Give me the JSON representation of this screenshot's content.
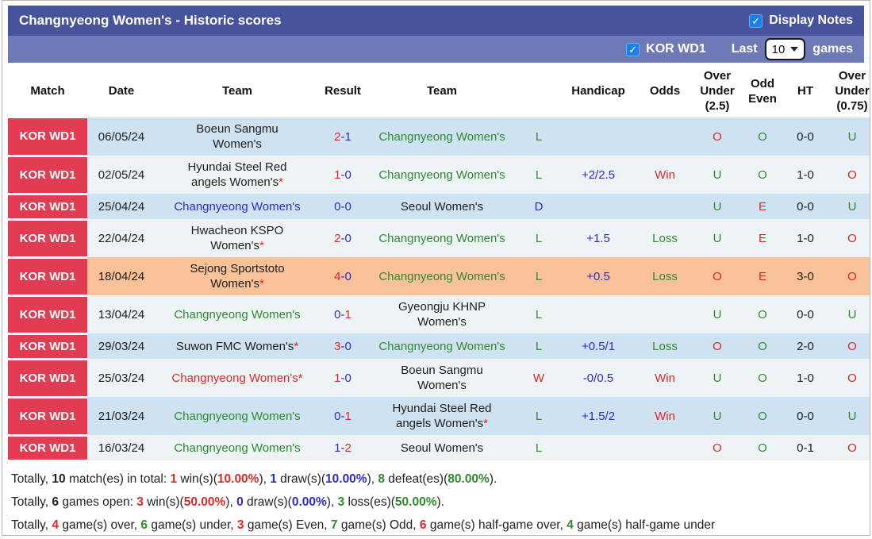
{
  "header": {
    "title": "Changnyeong Women's - Historic scores",
    "display_notes_label": "Display Notes",
    "league_checkbox_label": "KOR WD1",
    "last_label": "Last",
    "selected_games": "10",
    "games_label": "games"
  },
  "icons": {
    "check": "✓"
  },
  "palette": {
    "red": "#e02626",
    "green": "#2e8b2e",
    "blue": "#2b2bd0",
    "badge_bg": "#e23c52",
    "row_blue": "#cfe2f1",
    "row_pale": "#eef4f6",
    "row_orange": "#f9c197",
    "band1_bg": "#47539a",
    "band2_bg": "#6e79b8",
    "checkbox_blue": "#1d7fe8"
  },
  "table": {
    "columns": [
      "Match",
      "Date",
      "Team",
      "Result",
      "Team",
      "",
      "Handicap",
      "Odds",
      "Over\nUnder\n(2.5)",
      "Odd\nEven",
      "HT",
      "Over\nUnder\n(0.75)"
    ],
    "rows": [
      {
        "badge": "KOR WD1",
        "date": "06/05/24",
        "home": {
          "name": "Boeun Sangmu Women's",
          "color": "black",
          "star": false
        },
        "result": {
          "home": "2",
          "away": "1",
          "home_color": "red",
          "away_color": "blue"
        },
        "away": {
          "name": "Changnyeong Women's",
          "color": "green",
          "star": false
        },
        "outcome": {
          "text": "L",
          "color": "green"
        },
        "handicap": "",
        "odds": {
          "text": "",
          "color": "red"
        },
        "over_under_25": {
          "text": "O",
          "color": "red"
        },
        "odd_even": {
          "text": "O",
          "color": "green"
        },
        "ht": "0-0",
        "over_under_075": {
          "text": "U",
          "color": "green"
        },
        "bg": "blue"
      },
      {
        "badge": "KOR WD1",
        "date": "02/05/24",
        "home": {
          "name": "Hyundai Steel Red angels Women's",
          "color": "black",
          "star": true
        },
        "result": {
          "home": "1",
          "away": "0",
          "home_color": "red",
          "away_color": "blue"
        },
        "away": {
          "name": "Changnyeong Women's",
          "color": "green",
          "star": false
        },
        "outcome": {
          "text": "L",
          "color": "green"
        },
        "handicap": "+2/2.5",
        "odds": {
          "text": "Win",
          "color": "red"
        },
        "over_under_25": {
          "text": "U",
          "color": "green"
        },
        "odd_even": {
          "text": "O",
          "color": "green"
        },
        "ht": "1-0",
        "over_under_075": {
          "text": "O",
          "color": "red"
        },
        "bg": "pale"
      },
      {
        "badge": "KOR WD1",
        "date": "25/04/24",
        "home": {
          "name": "Changnyeong Women's",
          "color": "blue",
          "star": false
        },
        "result": {
          "home": "0",
          "away": "0",
          "home_color": "blue",
          "away_color": "blue"
        },
        "away": {
          "name": "Seoul Women's",
          "color": "black",
          "star": false
        },
        "outcome": {
          "text": "D",
          "color": "blue"
        },
        "handicap": "",
        "odds": {
          "text": "",
          "color": "red"
        },
        "over_under_25": {
          "text": "U",
          "color": "green"
        },
        "odd_even": {
          "text": "E",
          "color": "red"
        },
        "ht": "0-0",
        "over_under_075": {
          "text": "U",
          "color": "green"
        },
        "bg": "blue"
      },
      {
        "badge": "KOR WD1",
        "date": "22/04/24",
        "home": {
          "name": "Hwacheon KSPO Women's",
          "color": "black",
          "star": true
        },
        "result": {
          "home": "2",
          "away": "0",
          "home_color": "red",
          "away_color": "blue"
        },
        "away": {
          "name": "Changnyeong Women's",
          "color": "green",
          "star": false
        },
        "outcome": {
          "text": "L",
          "color": "green"
        },
        "handicap": "+1.5",
        "odds": {
          "text": "Loss",
          "color": "green"
        },
        "over_under_25": {
          "text": "U",
          "color": "green"
        },
        "odd_even": {
          "text": "E",
          "color": "red"
        },
        "ht": "1-0",
        "over_under_075": {
          "text": "O",
          "color": "red"
        },
        "bg": "pale"
      },
      {
        "badge": "KOR WD1",
        "date": "18/04/24",
        "home": {
          "name": "Sejong Sportstoto Women's",
          "color": "black",
          "star": true
        },
        "result": {
          "home": "4",
          "away": "0",
          "home_color": "red",
          "away_color": "blue"
        },
        "away": {
          "name": "Changnyeong Women's",
          "color": "green",
          "star": false
        },
        "outcome": {
          "text": "L",
          "color": "green"
        },
        "handicap": "+0.5",
        "odds": {
          "text": "Loss",
          "color": "green"
        },
        "over_under_25": {
          "text": "O",
          "color": "red"
        },
        "odd_even": {
          "text": "E",
          "color": "red"
        },
        "ht": "3-0",
        "over_under_075": {
          "text": "O",
          "color": "red"
        },
        "bg": "orange"
      },
      {
        "badge": "KOR WD1",
        "date": "13/04/24",
        "home": {
          "name": "Changnyeong Women's",
          "color": "green",
          "star": false
        },
        "result": {
          "home": "0",
          "away": "1",
          "home_color": "blue",
          "away_color": "red"
        },
        "away": {
          "name": "Gyeongju KHNP Women's",
          "color": "black",
          "star": false
        },
        "outcome": {
          "text": "L",
          "color": "green"
        },
        "handicap": "",
        "odds": {
          "text": "",
          "color": "red"
        },
        "over_under_25": {
          "text": "U",
          "color": "green"
        },
        "odd_even": {
          "text": "O",
          "color": "green"
        },
        "ht": "0-0",
        "over_under_075": {
          "text": "U",
          "color": "green"
        },
        "bg": "pale"
      },
      {
        "badge": "KOR WD1",
        "date": "29/03/24",
        "home": {
          "name": "Suwon FMC Women's",
          "color": "black",
          "star": true
        },
        "result": {
          "home": "3",
          "away": "0",
          "home_color": "red",
          "away_color": "blue"
        },
        "away": {
          "name": "Changnyeong Women's",
          "color": "green",
          "star": false
        },
        "outcome": {
          "text": "L",
          "color": "green"
        },
        "handicap": "+0.5/1",
        "odds": {
          "text": "Loss",
          "color": "green"
        },
        "over_under_25": {
          "text": "O",
          "color": "red"
        },
        "odd_even": {
          "text": "O",
          "color": "green"
        },
        "ht": "2-0",
        "over_under_075": {
          "text": "O",
          "color": "red"
        },
        "bg": "blue"
      },
      {
        "badge": "KOR WD1",
        "date": "25/03/24",
        "home": {
          "name": "Changnyeong Women's",
          "color": "red",
          "star": true
        },
        "result": {
          "home": "1",
          "away": "0",
          "home_color": "red",
          "away_color": "blue"
        },
        "away": {
          "name": "Boeun Sangmu Women's",
          "color": "black",
          "star": false
        },
        "outcome": {
          "text": "W",
          "color": "red"
        },
        "handicap": "-0/0.5",
        "odds": {
          "text": "Win",
          "color": "red"
        },
        "over_under_25": {
          "text": "U",
          "color": "green"
        },
        "odd_even": {
          "text": "O",
          "color": "green"
        },
        "ht": "1-0",
        "over_under_075": {
          "text": "O",
          "color": "red"
        },
        "bg": "pale"
      },
      {
        "badge": "KOR WD1",
        "date": "21/03/24",
        "home": {
          "name": "Changnyeong Women's",
          "color": "green",
          "star": false
        },
        "result": {
          "home": "0",
          "away": "1",
          "home_color": "blue",
          "away_color": "red"
        },
        "away": {
          "name": "Hyundai Steel Red angels Women's",
          "color": "black",
          "star": true
        },
        "outcome": {
          "text": "L",
          "color": "green"
        },
        "handicap": "+1.5/2",
        "odds": {
          "text": "Win",
          "color": "red"
        },
        "over_under_25": {
          "text": "U",
          "color": "green"
        },
        "odd_even": {
          "text": "O",
          "color": "green"
        },
        "ht": "0-0",
        "over_under_075": {
          "text": "U",
          "color": "green"
        },
        "bg": "blue"
      },
      {
        "badge": "KOR WD1",
        "date": "16/03/24",
        "home": {
          "name": "Changnyeong Women's",
          "color": "green",
          "star": false
        },
        "result": {
          "home": "1",
          "away": "2",
          "home_color": "blue",
          "away_color": "red"
        },
        "away": {
          "name": "Seoul Women's",
          "color": "black",
          "star": false
        },
        "outcome": {
          "text": "L",
          "color": "green"
        },
        "handicap": "",
        "odds": {
          "text": "",
          "color": "red"
        },
        "over_under_25": {
          "text": "O",
          "color": "red"
        },
        "odd_even": {
          "text": "O",
          "color": "green"
        },
        "ht": "0-1",
        "over_under_075": {
          "text": "O",
          "color": "red"
        },
        "bg": "pale"
      }
    ]
  },
  "summary": {
    "lines": [
      [
        {
          "t": "Totally, "
        },
        {
          "t": "10",
          "b": 1
        },
        {
          "t": " match(es) in total: "
        },
        {
          "t": "1",
          "b": 1,
          "c": "red"
        },
        {
          "t": " win(s)("
        },
        {
          "t": "10.00%",
          "b": 1,
          "c": "red"
        },
        {
          "t": "), "
        },
        {
          "t": "1",
          "b": 1,
          "c": "blue"
        },
        {
          "t": " draw(s)("
        },
        {
          "t": "10.00%",
          "b": 1,
          "c": "blue"
        },
        {
          "t": "), "
        },
        {
          "t": "8",
          "b": 1,
          "c": "green"
        },
        {
          "t": " defeat(es)("
        },
        {
          "t": "80.00%",
          "b": 1,
          "c": "green"
        },
        {
          "t": ")."
        }
      ],
      [
        {
          "t": "Totally, "
        },
        {
          "t": "6",
          "b": 1
        },
        {
          "t": " games open: "
        },
        {
          "t": "3",
          "b": 1,
          "c": "red"
        },
        {
          "t": " win(s)("
        },
        {
          "t": "50.00%",
          "b": 1,
          "c": "red"
        },
        {
          "t": "), "
        },
        {
          "t": "0",
          "b": 1,
          "c": "blue"
        },
        {
          "t": " draw(s)("
        },
        {
          "t": "0.00%",
          "b": 1,
          "c": "blue"
        },
        {
          "t": "), "
        },
        {
          "t": "3",
          "b": 1,
          "c": "green"
        },
        {
          "t": " loss(es)("
        },
        {
          "t": "50.00%",
          "b": 1,
          "c": "green"
        },
        {
          "t": ")."
        }
      ],
      [
        {
          "t": "Totally, "
        },
        {
          "t": "4",
          "b": 1,
          "c": "red"
        },
        {
          "t": " game(s) over, "
        },
        {
          "t": "6",
          "b": 1,
          "c": "green"
        },
        {
          "t": " game(s) under, "
        },
        {
          "t": "3",
          "b": 1,
          "c": "red"
        },
        {
          "t": " game(s) Even, "
        },
        {
          "t": "7",
          "b": 1,
          "c": "green"
        },
        {
          "t": " game(s) Odd, "
        },
        {
          "t": "6",
          "b": 1,
          "c": "red"
        },
        {
          "t": " game(s) half-game over, "
        },
        {
          "t": "4",
          "b": 1,
          "c": "green"
        },
        {
          "t": " game(s) half-game under"
        }
      ]
    ]
  }
}
